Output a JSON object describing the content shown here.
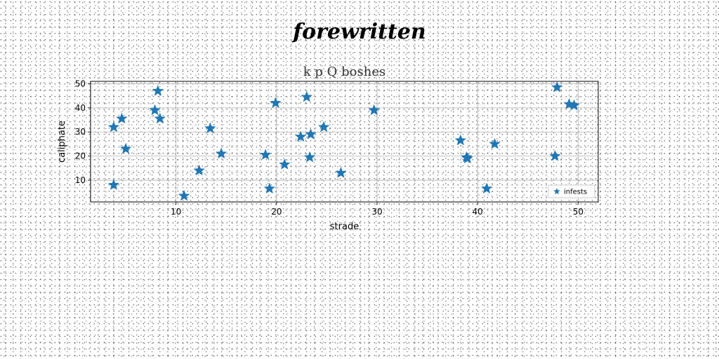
{
  "heading": "forewritten",
  "chart_data": {
    "type": "scatter",
    "title": "k p Q boshes",
    "xlabel": "strade",
    "ylabel": "caliphate",
    "xlim": [
      1.5,
      52
    ],
    "ylim": [
      1,
      51
    ],
    "xticks": [
      10,
      20,
      30,
      40,
      50
    ],
    "yticks": [
      10,
      20,
      30,
      40,
      50
    ],
    "grid": true,
    "legend_position": "lower-right",
    "marker": "star",
    "color": "#1f77b4",
    "series": [
      {
        "name": "infests",
        "points": [
          [
            3.8,
            32
          ],
          [
            3.8,
            8
          ],
          [
            4.6,
            35.5
          ],
          [
            5.0,
            23
          ],
          [
            7.9,
            39
          ],
          [
            8.2,
            47
          ],
          [
            8.4,
            35.5
          ],
          [
            10.8,
            3.5
          ],
          [
            12.3,
            14
          ],
          [
            13.4,
            31.5
          ],
          [
            14.5,
            21
          ],
          [
            18.9,
            20.5
          ],
          [
            19.3,
            6.5
          ],
          [
            19.9,
            42
          ],
          [
            20.8,
            16.5
          ],
          [
            22.4,
            28
          ],
          [
            23.0,
            44.5
          ],
          [
            23.3,
            19.5
          ],
          [
            23.4,
            29
          ],
          [
            24.7,
            32
          ],
          [
            26.4,
            13
          ],
          [
            29.7,
            39
          ],
          [
            38.3,
            26.5
          ],
          [
            38.9,
            19.5
          ],
          [
            39.0,
            19
          ],
          [
            40.9,
            6.5
          ],
          [
            41.7,
            25
          ],
          [
            47.7,
            20
          ],
          [
            47.9,
            48.5
          ],
          [
            49.1,
            41.5
          ],
          [
            49.6,
            41
          ]
        ]
      }
    ]
  }
}
